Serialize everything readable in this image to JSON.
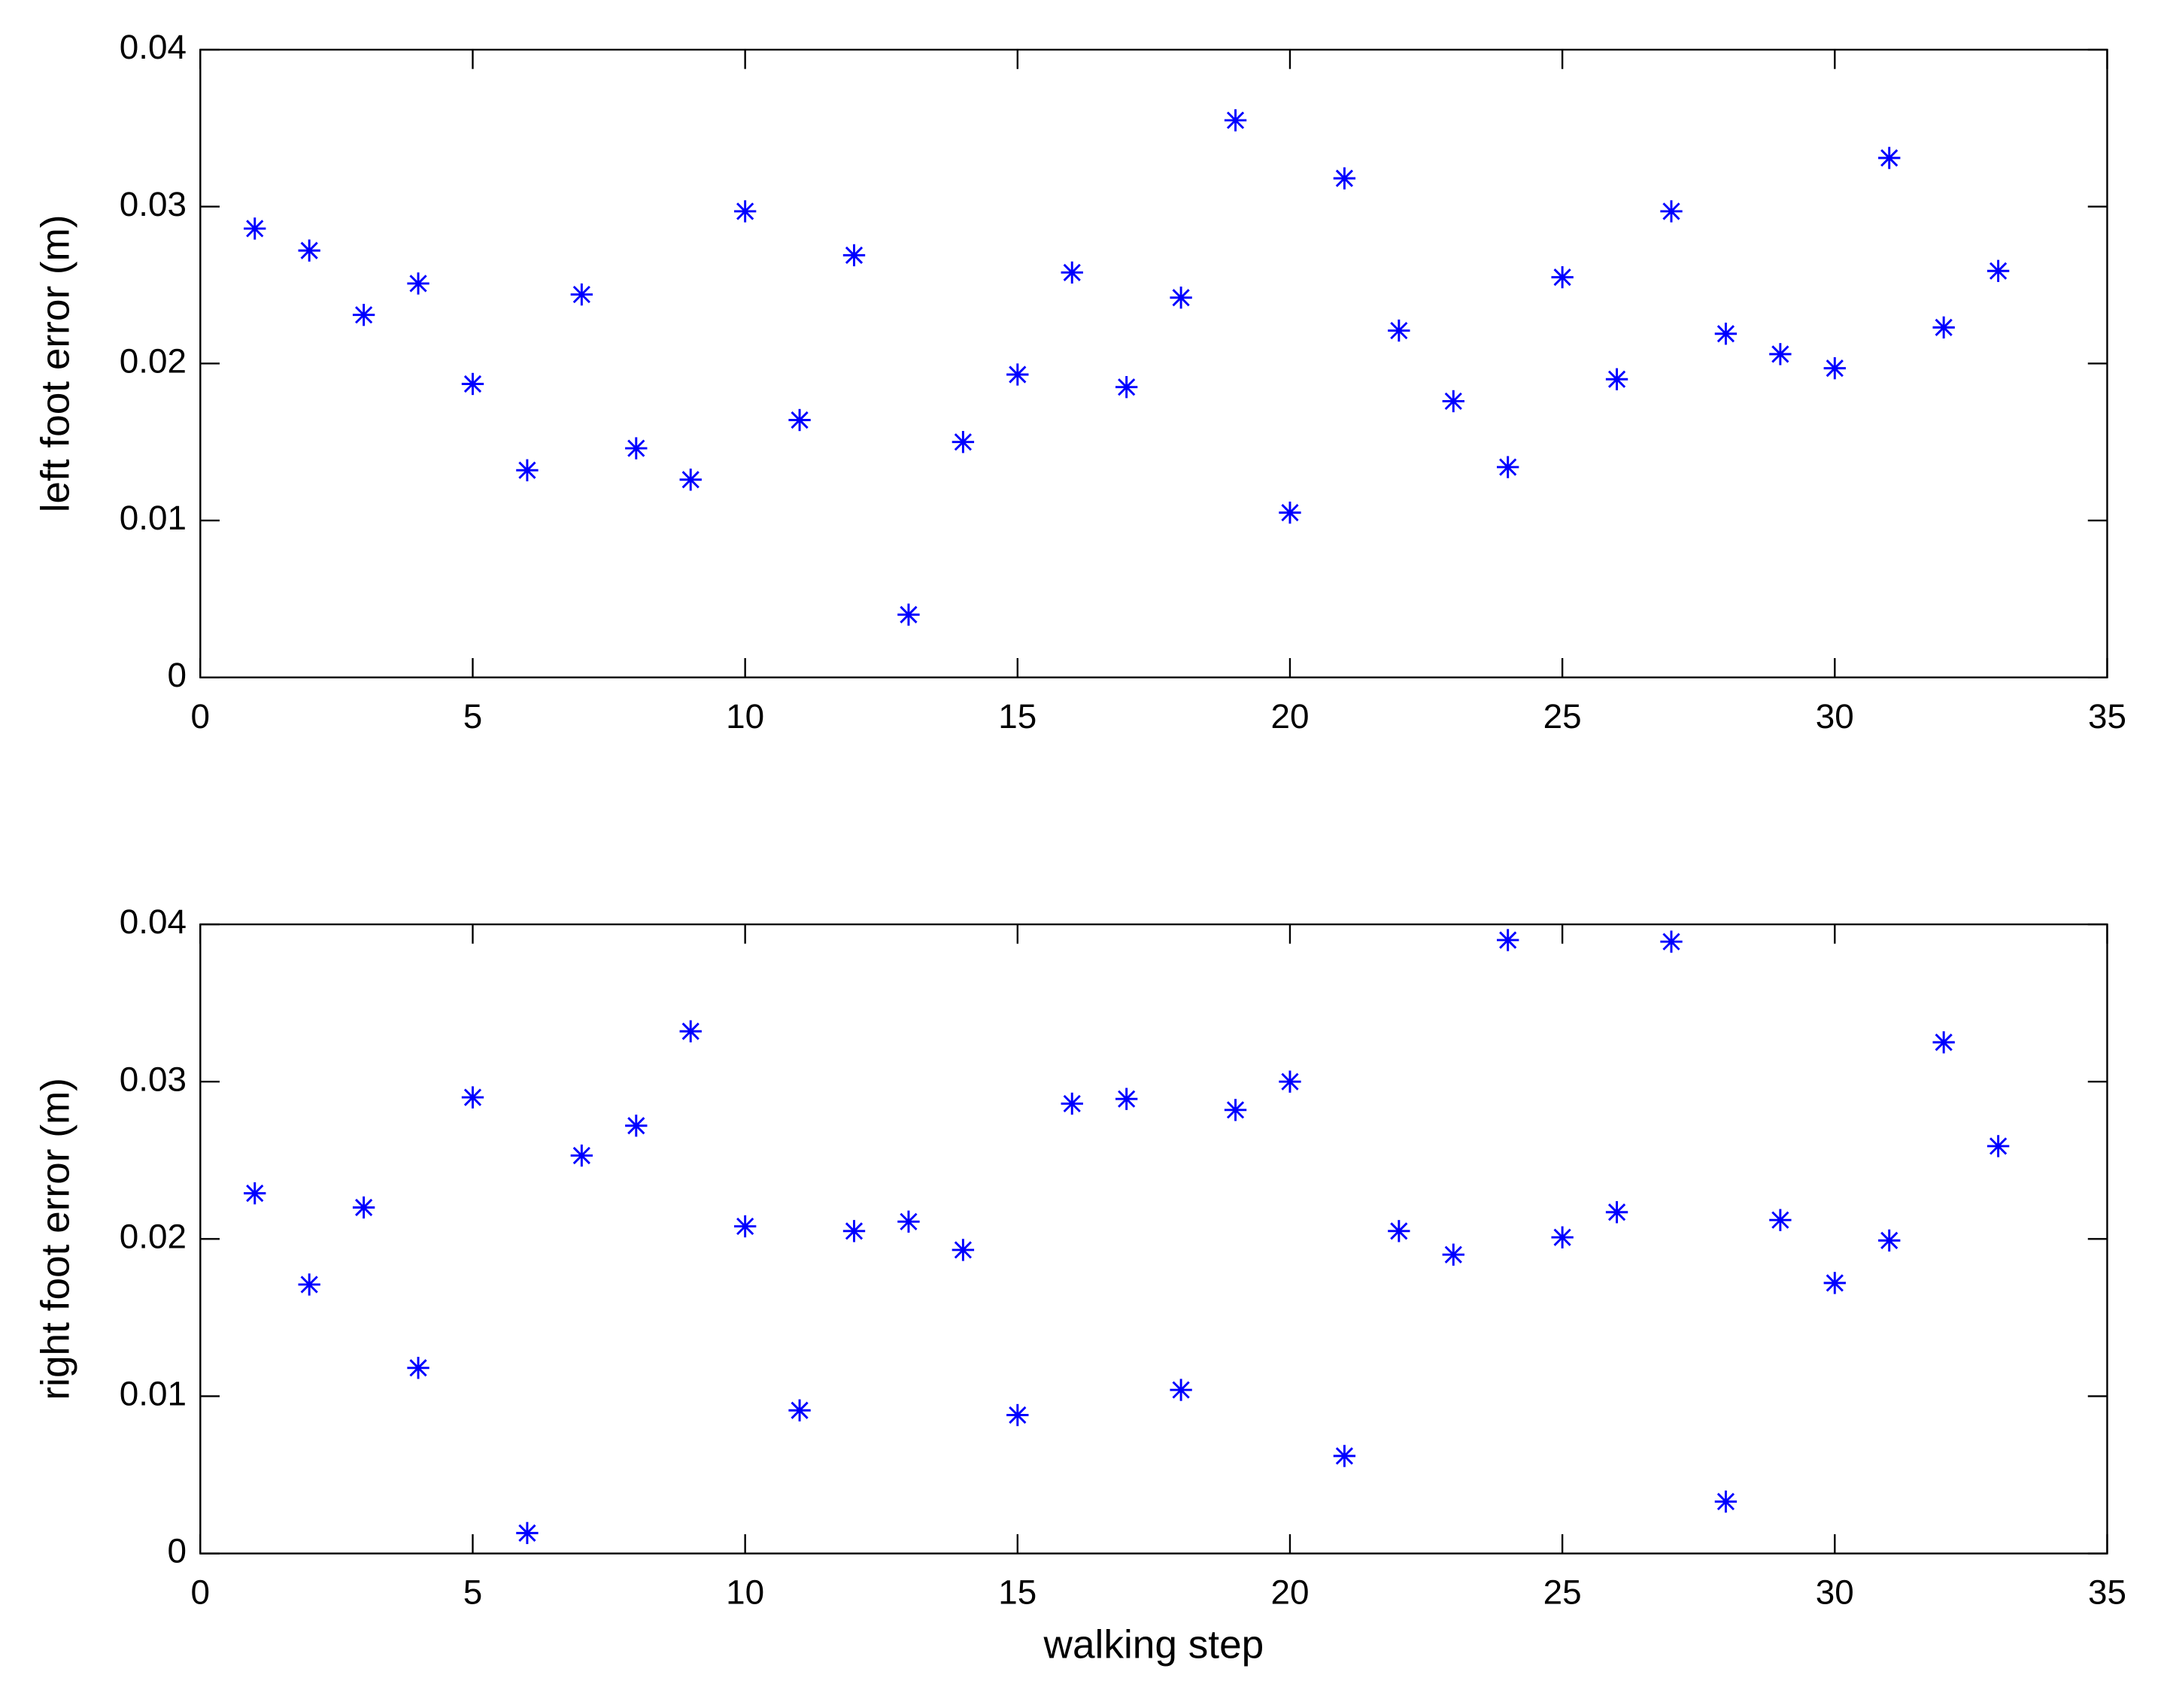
{
  "chart_data": [
    {
      "type": "scatter",
      "ylabel": "left foot error (m)",
      "marker": "asterisk",
      "x": [
        1,
        2,
        3,
        4,
        5,
        6,
        7,
        8,
        9,
        10,
        11,
        12,
        13,
        14,
        15,
        16,
        17,
        18,
        19,
        20,
        21,
        22,
        23,
        24,
        25,
        26,
        27,
        28,
        29,
        30,
        31,
        32,
        33
      ],
      "series": [
        {
          "color": "#0000ff",
          "values": [
            0.0286,
            0.0272,
            0.0231,
            0.0251,
            0.0187,
            0.0132,
            0.0244,
            0.0146,
            0.0126,
            0.0297,
            0.0164,
            0.0269,
            0.004,
            0.015,
            0.0193,
            0.0258,
            0.0185,
            0.0242,
            0.0355,
            0.0105,
            0.0318,
            0.0221,
            0.0176,
            0.0134,
            0.0255,
            0.019,
            0.0297,
            0.0219,
            0.0206,
            0.0197,
            0.0331,
            0.0223,
            0.0259
          ]
        }
      ],
      "xlim": [
        0,
        35
      ],
      "xticks": [
        0,
        5,
        10,
        15,
        20,
        25,
        30,
        35
      ],
      "ylim": [
        0,
        0.04
      ],
      "yticks": [
        0,
        0.01,
        0.02,
        0.03,
        0.04
      ]
    },
    {
      "type": "scatter",
      "xlabel": "walking step",
      "ylabel": "right foot error (m)",
      "marker": "asterisk",
      "x": [
        1,
        2,
        3,
        4,
        5,
        6,
        7,
        8,
        9,
        10,
        11,
        12,
        13,
        14,
        15,
        16,
        17,
        18,
        19,
        20,
        21,
        22,
        23,
        24,
        25,
        26,
        27,
        28,
        29,
        30,
        31,
        32,
        33
      ],
      "series": [
        {
          "color": "#0000ff",
          "values": [
            0.0229,
            0.0171,
            0.022,
            0.0118,
            0.029,
            0.0013,
            0.0253,
            0.0272,
            0.0332,
            0.0208,
            0.0091,
            0.0205,
            0.0211,
            0.0193,
            0.0088,
            0.0286,
            0.0289,
            0.0104,
            0.0282,
            0.03,
            0.0062,
            0.0205,
            0.019,
            0.039,
            0.0201,
            0.0217,
            0.0389,
            0.0033,
            0.0212,
            0.0172,
            0.0199,
            0.0325,
            0.0259
          ]
        }
      ],
      "xlim": [
        0,
        35
      ],
      "xticks": [
        0,
        5,
        10,
        15,
        20,
        25,
        30,
        35
      ],
      "ylim": [
        0,
        0.04
      ],
      "yticks": [
        0,
        0.01,
        0.02,
        0.03,
        0.04
      ]
    }
  ]
}
